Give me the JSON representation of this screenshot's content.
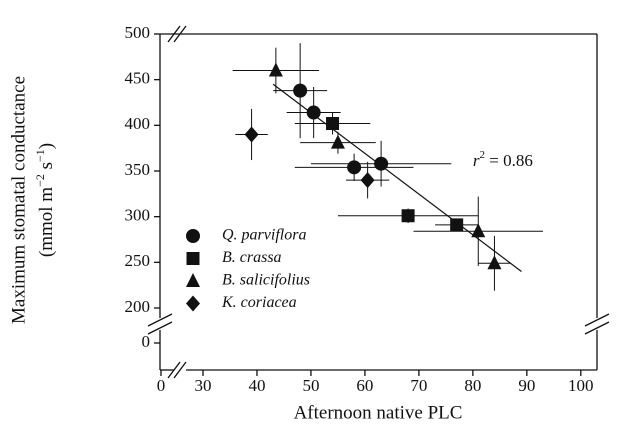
{
  "chart_data": {
    "type": "scatter",
    "x_label": "Afternoon native PLC",
    "y_label": {
      "line1": "Maximum stomatal conductance",
      "open": "(mmol m",
      "sup1": "−2",
      "mid": " s",
      "sup2": "−1",
      "close": ")"
    },
    "annotation": {
      "r": "r",
      "sup": "2",
      "rest": " = 0.86",
      "x": 80,
      "y": 360
    },
    "xlim": [
      0,
      103
    ],
    "ylim": [
      0,
      500
    ],
    "xbreak": [
      0,
      30
    ],
    "ybreak": [
      0,
      200
    ],
    "xticks": [
      0,
      30,
      40,
      50,
      60,
      70,
      80,
      90,
      100
    ],
    "yticks": [
      0,
      200,
      250,
      300,
      350,
      400,
      450,
      500
    ],
    "legend": "lower left",
    "color": "#111111",
    "fit": {
      "x": [
        43,
        89
      ],
      "y": [
        445,
        240
      ]
    },
    "series": [
      {
        "name": "Q. parviflora",
        "marker": "circle",
        "x": [
          48,
          50.5,
          58,
          63
        ],
        "values": [
          438,
          414,
          354,
          358
        ],
        "xerr": [
          5,
          5,
          11,
          13
        ],
        "yerr": [
          52,
          28,
          15,
          25
        ]
      },
      {
        "name": "B. crassa",
        "marker": "square",
        "x": [
          54,
          68,
          77
        ],
        "values": [
          402,
          301,
          291
        ],
        "xerr": [
          7,
          13,
          4
        ],
        "yerr": [
          12,
          8,
          5
        ]
      },
      {
        "name": "B. salicifolius",
        "marker": "triangle",
        "x": [
          43.5,
          55,
          81,
          84
        ],
        "values": [
          460,
          381,
          284,
          249
        ],
        "xerr": [
          8,
          7,
          12,
          3
        ],
        "yerr": [
          25,
          12,
          38,
          30
        ]
      },
      {
        "name": "K. coriacea",
        "marker": "diamond",
        "x": [
          39,
          60.5
        ],
        "values": [
          390,
          340
        ],
        "xerr": [
          3,
          4
        ],
        "yerr": [
          28,
          20
        ]
      }
    ]
  }
}
